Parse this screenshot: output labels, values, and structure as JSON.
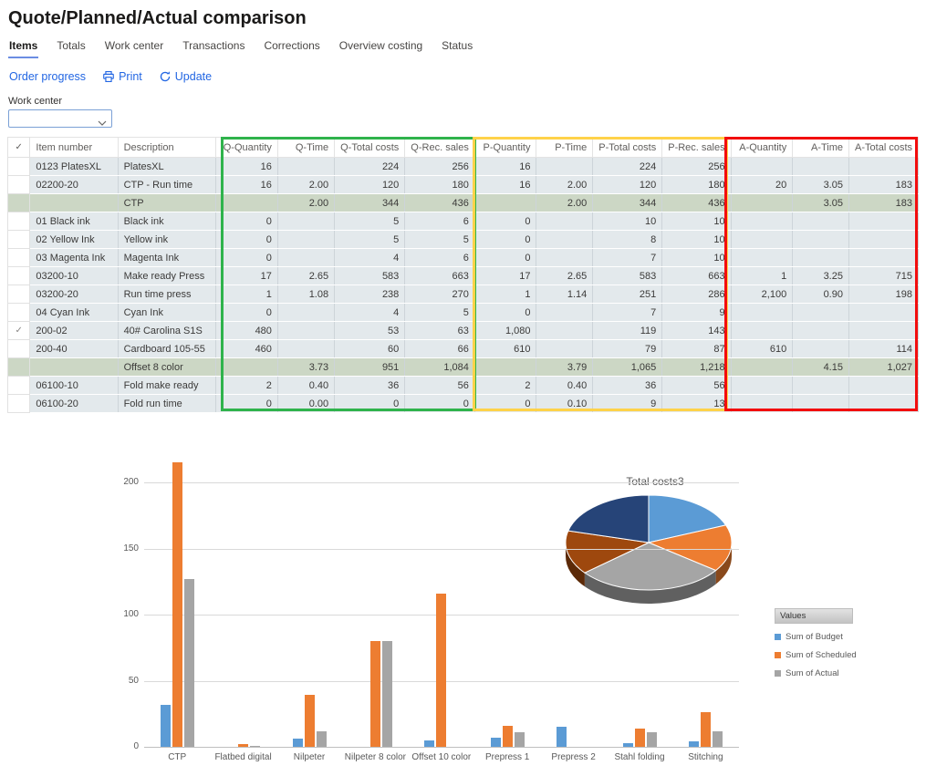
{
  "page": {
    "title": "Quote/Planned/Actual comparison"
  },
  "tabs": [
    {
      "label": "Items",
      "active": true
    },
    {
      "label": "Totals",
      "active": false
    },
    {
      "label": "Work center",
      "active": false
    },
    {
      "label": "Transactions",
      "active": false
    },
    {
      "label": "Corrections",
      "active": false
    },
    {
      "label": "Overview costing",
      "active": false
    },
    {
      "label": "Status",
      "active": false
    }
  ],
  "toolbar": {
    "order_progress_label": "Order progress",
    "print_label": "Print",
    "update_label": "Update",
    "print_icon": "printer-icon",
    "update_icon": "refresh-icon",
    "link_color": "#2266e3"
  },
  "filter": {
    "label": "Work center",
    "value": "",
    "icon": "chevron-down-icon"
  },
  "table": {
    "select_header_glyph": "✓",
    "headers": [
      "Item number",
      "Description",
      "Q-Quantity",
      "Q-Time",
      "Q-Total costs",
      "Q-Rec. sales",
      "P-Quantity",
      "P-Time",
      "P-Total costs",
      "P-Rec. sales",
      "A-Quantity",
      "A-Time",
      "A-Total costs"
    ],
    "rows": [
      {
        "type": "data",
        "checked": false,
        "item": "0123 PlatesXL",
        "desc": "PlatesXL",
        "cells": [
          "16",
          "",
          "224",
          "256",
          "16",
          "",
          "224",
          "256",
          "",
          "",
          ""
        ]
      },
      {
        "type": "data",
        "checked": false,
        "item": "02200-20",
        "desc": "CTP - Run time",
        "cells": [
          "16",
          "2.00",
          "120",
          "180",
          "16",
          "2.00",
          "120",
          "180",
          "20",
          "3.05",
          "183"
        ]
      },
      {
        "type": "summary",
        "checked": false,
        "item": "",
        "desc": "CTP",
        "cells": [
          "",
          "2.00",
          "344",
          "436",
          "",
          "2.00",
          "344",
          "436",
          "",
          "3.05",
          "183"
        ]
      },
      {
        "type": "data",
        "checked": false,
        "item": "01 Black ink",
        "desc": "Black ink",
        "cells": [
          "0",
          "",
          "5",
          "6",
          "0",
          "",
          "10",
          "10",
          "",
          "",
          ""
        ]
      },
      {
        "type": "data",
        "checked": false,
        "item": "02 Yellow Ink",
        "desc": "Yellow ink",
        "cells": [
          "0",
          "",
          "5",
          "5",
          "0",
          "",
          "8",
          "10",
          "",
          "",
          ""
        ]
      },
      {
        "type": "data",
        "checked": false,
        "item": "03 Magenta Ink",
        "desc": "Magenta Ink",
        "cells": [
          "0",
          "",
          "4",
          "6",
          "0",
          "",
          "7",
          "10",
          "",
          "",
          ""
        ]
      },
      {
        "type": "data",
        "checked": false,
        "item": "03200-10",
        "desc": "Make ready Press",
        "cells": [
          "17",
          "2.65",
          "583",
          "663",
          "17",
          "2.65",
          "583",
          "663",
          "1",
          "3.25",
          "715"
        ]
      },
      {
        "type": "data",
        "checked": false,
        "item": "03200-20",
        "desc": "Run time press",
        "cells": [
          "1",
          "1.08",
          "238",
          "270",
          "1",
          "1.14",
          "251",
          "286",
          "2,100",
          "0.90",
          "198"
        ]
      },
      {
        "type": "data",
        "checked": false,
        "item": "04 Cyan Ink",
        "desc": "Cyan Ink",
        "cells": [
          "0",
          "",
          "4",
          "5",
          "0",
          "",
          "7",
          "9",
          "",
          "",
          ""
        ]
      },
      {
        "type": "data",
        "checked": true,
        "item": "200-02",
        "desc": "40# Carolina S1S",
        "cells": [
          "480",
          "",
          "53",
          "63",
          "1,080",
          "",
          "119",
          "143",
          "",
          "",
          ""
        ]
      },
      {
        "type": "data",
        "checked": false,
        "item": "200-40",
        "desc": "Cardboard 105-55",
        "cells": [
          "460",
          "",
          "60",
          "66",
          "610",
          "",
          "79",
          "87",
          "610",
          "",
          "114"
        ]
      },
      {
        "type": "summary",
        "checked": false,
        "item": "",
        "desc": "Offset 8 color",
        "cells": [
          "",
          "3.73",
          "951",
          "1,084",
          "",
          "3.79",
          "1,065",
          "1,218",
          "",
          "4.15",
          "1,027"
        ]
      },
      {
        "type": "data",
        "checked": false,
        "item": "06100-10",
        "desc": "Fold make ready",
        "cells": [
          "2",
          "0.40",
          "36",
          "56",
          "2",
          "0.40",
          "36",
          "56",
          "",
          "",
          ""
        ]
      },
      {
        "type": "data",
        "checked": false,
        "item": "06100-20",
        "desc": "Fold run time",
        "cells": [
          "0",
          "0.00",
          "0",
          "0",
          "0",
          "0.10",
          "9",
          "13",
          "",
          "",
          ""
        ]
      }
    ],
    "highlight_boxes": [
      {
        "name": "quote-columns-box",
        "color": "#2fb34c"
      },
      {
        "name": "planned-columns-box",
        "color": "#ffd24a"
      },
      {
        "name": "actual-columns-box",
        "color": "#f20d0d"
      }
    ]
  },
  "chart_data": [
    {
      "type": "bar",
      "title": "",
      "categories": [
        "CTP",
        "Flatbed digital",
        "Nilpeter",
        "Nilpeter 8 color",
        "Offset 10 color",
        "Prepress 1",
        "Prepress 2",
        "Stahl folding",
        "Stitching"
      ],
      "series": [
        {
          "name": "Sum of Budget",
          "color": "#5B9BD5",
          "values": [
            32,
            0,
            6,
            0,
            5,
            7,
            15,
            3,
            4
          ]
        },
        {
          "name": "Sum of Scheduled",
          "color": "#ED7D31",
          "values": [
            215,
            2,
            39,
            80,
            116,
            16,
            0,
            14,
            26
          ]
        },
        {
          "name": "Sum of Actual",
          "color": "#A5A5A5",
          "values": [
            127,
            1,
            12,
            80,
            0,
            11,
            0,
            11,
            12
          ]
        }
      ],
      "xlabel": "",
      "ylabel": "",
      "ylim": [
        0,
        220
      ],
      "yticks": [
        0,
        50,
        100,
        150,
        200
      ],
      "grid": true,
      "legend_position": "right"
    },
    {
      "type": "pie",
      "title": "Total costs3",
      "slices": [
        {
          "pct": 19,
          "color": "#5B9BD5"
        },
        {
          "pct": 16,
          "color": "#ED7D31"
        },
        {
          "pct": 29,
          "color": "#A5A5A5"
        },
        {
          "pct": 15,
          "color": "#9E480E"
        },
        {
          "pct": 21,
          "color": "#264478"
        }
      ],
      "style": "3d"
    }
  ],
  "legend": {
    "title": "Values",
    "items": [
      {
        "label": "Sum of Budget",
        "color": "#5B9BD5"
      },
      {
        "label": "Sum of Scheduled",
        "color": "#ED7D31"
      },
      {
        "label": "Sum of Actual",
        "color": "#A5A5A5"
      }
    ]
  }
}
